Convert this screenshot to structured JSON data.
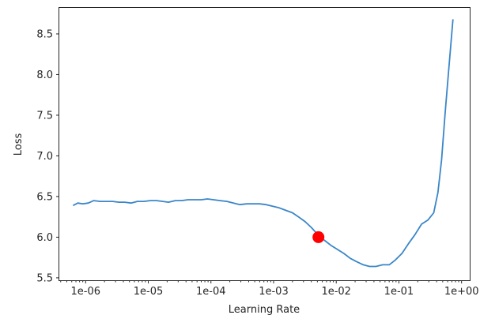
{
  "chart_data": {
    "type": "line",
    "title": "",
    "xlabel": "Learning Rate",
    "ylabel": "Loss",
    "x_scale": "log",
    "xlim": [
      3.8e-07,
      1.35
    ],
    "ylim": [
      5.47,
      8.82
    ],
    "grid": false,
    "xticks": [
      {
        "value": 1e-06,
        "label": "1e-06"
      },
      {
        "value": 1e-05,
        "label": "1e-05"
      },
      {
        "value": 0.0001,
        "label": "1e-04"
      },
      {
        "value": 0.001,
        "label": "1e-03"
      },
      {
        "value": 0.01,
        "label": "1e-02"
      },
      {
        "value": 0.1,
        "label": "1e-01"
      },
      {
        "value": 1,
        "label": "1e+00"
      }
    ],
    "yticks": [
      {
        "value": 5.5,
        "label": "5.5"
      },
      {
        "value": 6.0,
        "label": "6.0"
      },
      {
        "value": 6.5,
        "label": "6.5"
      },
      {
        "value": 7.0,
        "label": "7.0"
      },
      {
        "value": 7.5,
        "label": "7.5"
      },
      {
        "value": 8.0,
        "label": "8.0"
      },
      {
        "value": 8.5,
        "label": "8.5"
      }
    ],
    "series": [
      {
        "color": "#3a86c8",
        "x": [
          6.3e-07,
          7.5e-07,
          9e-07,
          1.1e-06,
          1.35e-06,
          1.7e-06,
          2.1e-06,
          2.7e-06,
          3.4e-06,
          4.2e-06,
          5.3e-06,
          6.7e-06,
          8.5e-06,
          1.07e-05,
          1.36e-05,
          1.7e-05,
          2.1e-05,
          2.7e-05,
          3.4e-05,
          4.3e-05,
          5.5e-05,
          7e-05,
          8.8e-05,
          0.00011,
          0.00014,
          0.00018,
          0.00023,
          0.00029,
          0.00037,
          0.00047,
          0.0006,
          0.00076,
          0.00097,
          0.00123,
          0.00156,
          0.002,
          0.0025,
          0.0032,
          0.004,
          0.0051,
          0.0065,
          0.0082,
          0.0104,
          0.0132,
          0.0167,
          0.021,
          0.027,
          0.034,
          0.043,
          0.055,
          0.07,
          0.088,
          0.112,
          0.142,
          0.18,
          0.23,
          0.29,
          0.36,
          0.42,
          0.48,
          0.55,
          0.63,
          0.73
        ],
        "y": [
          6.39,
          6.42,
          6.41,
          6.42,
          6.45,
          6.44,
          6.44,
          6.44,
          6.43,
          6.43,
          6.42,
          6.44,
          6.44,
          6.45,
          6.45,
          6.44,
          6.43,
          6.45,
          6.45,
          6.46,
          6.46,
          6.46,
          6.47,
          6.46,
          6.45,
          6.44,
          6.42,
          6.4,
          6.41,
          6.41,
          6.41,
          6.4,
          6.38,
          6.36,
          6.33,
          6.3,
          6.25,
          6.19,
          6.12,
          6.03,
          5.96,
          5.9,
          5.85,
          5.8,
          5.74,
          5.7,
          5.66,
          5.64,
          5.64,
          5.66,
          5.66,
          5.72,
          5.8,
          5.92,
          6.03,
          6.16,
          6.21,
          6.3,
          6.55,
          6.95,
          7.55,
          8.1,
          8.68
        ]
      }
    ],
    "marker": {
      "x": 0.0052,
      "y": 6.0,
      "color": "#ff0000"
    }
  }
}
